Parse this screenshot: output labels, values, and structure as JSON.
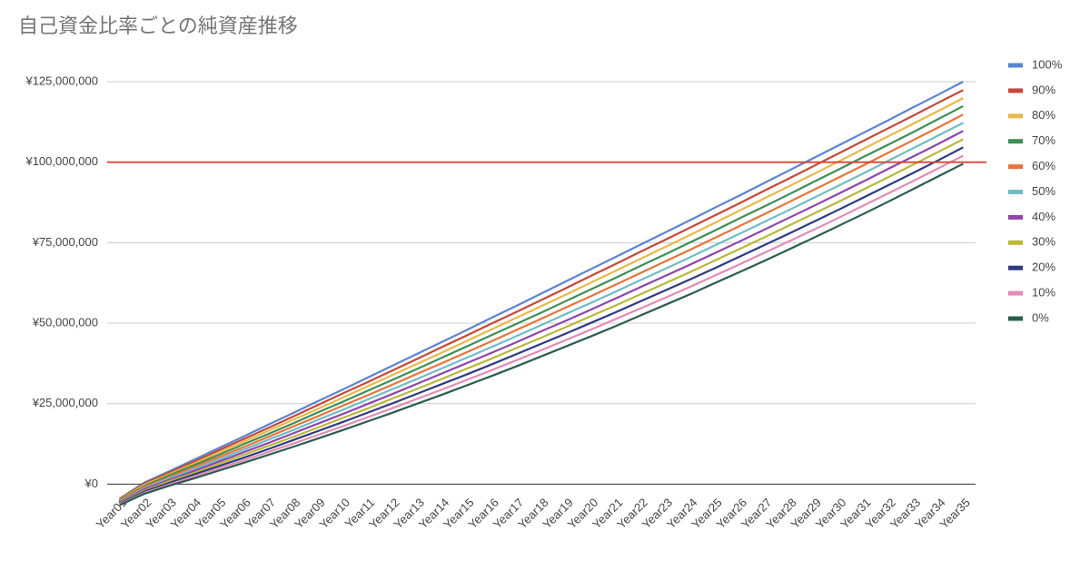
{
  "chart_data": {
    "type": "line",
    "title": "自己資金比率ごとの純資産推移",
    "categories": [
      "Year01",
      "Year02",
      "Year03",
      "Year04",
      "Year05",
      "Year06",
      "Year07",
      "Year08",
      "Year09",
      "Year10",
      "Year11",
      "Year12",
      "Year13",
      "Year14",
      "Year15",
      "Year16",
      "Year17",
      "Year18",
      "Year19",
      "Year20",
      "Year21",
      "Year22",
      "Year23",
      "Year24",
      "Year25",
      "Year26",
      "Year27",
      "Year28",
      "Year29",
      "Year30",
      "Year31",
      "Year32",
      "Year33",
      "Year34",
      "Year35"
    ],
    "series": [
      {
        "name": "100%",
        "color": "#5b84d1",
        "values": [
          -4500000,
          500000,
          4000000,
          7600000,
          11200000,
          14800000,
          18500000,
          22100000,
          25800000,
          29400000,
          33100000,
          36800000,
          40500000,
          44200000,
          47900000,
          51700000,
          55400000,
          59200000,
          63000000,
          66800000,
          70600000,
          74400000,
          78200000,
          82000000,
          85900000,
          89700000,
          93600000,
          97500000,
          101400000,
          105300000,
          109200000,
          113100000,
          117100000,
          121000000,
          125000000
        ]
      },
      {
        "name": "90%",
        "color": "#c4493b",
        "values": [
          -4700000,
          200000,
          3600000,
          7000000,
          10500000,
          14000000,
          17500000,
          21000000,
          24600000,
          28200000,
          31700000,
          35300000,
          38900000,
          42600000,
          46200000,
          49900000,
          53500000,
          57200000,
          60900000,
          64700000,
          68400000,
          72200000,
          75900000,
          79700000,
          83500000,
          87300000,
          91200000,
          95000000,
          98900000,
          102800000,
          106700000,
          110600000,
          114500000,
          118500000,
          122400000
        ]
      },
      {
        "name": "80%",
        "color": "#e8b949",
        "values": [
          -4900000,
          -200000,
          3100000,
          6400000,
          9800000,
          13200000,
          16600000,
          20000000,
          23400000,
          26900000,
          30400000,
          33900000,
          37400000,
          40900000,
          44500000,
          48100000,
          51700000,
          55300000,
          58900000,
          62600000,
          66300000,
          70000000,
          73700000,
          77400000,
          81200000,
          85000000,
          88800000,
          92600000,
          96400000,
          100300000,
          104200000,
          108100000,
          112000000,
          115900000,
          119900000
        ]
      },
      {
        "name": "70%",
        "color": "#3d8e57",
        "values": [
          -5100000,
          -600000,
          2700000,
          5900000,
          9100000,
          12400000,
          15600000,
          18900000,
          22300000,
          25600000,
          29000000,
          32400000,
          35800000,
          39300000,
          42800000,
          46300000,
          49800000,
          53300000,
          56900000,
          60500000,
          64100000,
          67800000,
          71400000,
          75100000,
          78800000,
          82600000,
          86300000,
          90100000,
          94000000,
          97800000,
          101700000,
          105500000,
          109400000,
          113400000,
          117400000
        ]
      },
      {
        "name": "60%",
        "color": "#e8743b",
        "values": [
          -5300000,
          -900000,
          2200000,
          5300000,
          8400000,
          11500000,
          14700000,
          17900000,
          21100000,
          24400000,
          27600000,
          30900000,
          34300000,
          37600000,
          41000000,
          44400000,
          47900000,
          51400000,
          54900000,
          58400000,
          62000000,
          65600000,
          69200000,
          72800000,
          76500000,
          80200000,
          83900000,
          87700000,
          91500000,
          95300000,
          99100000,
          103000000,
          106900000,
          110800000,
          114800000
        ]
      },
      {
        "name": "50%",
        "color": "#70bcc4",
        "values": [
          -5500000,
          -1300000,
          1800000,
          4700000,
          7700000,
          10700000,
          13800000,
          16800000,
          20000000,
          23100000,
          26300000,
          29500000,
          32700000,
          36000000,
          39300000,
          42600000,
          46000000,
          49400000,
          52900000,
          56300000,
          59800000,
          63400000,
          66900000,
          70500000,
          74200000,
          77800000,
          81500000,
          85200000,
          89000000,
          92800000,
          96600000,
          100500000,
          104400000,
          108300000,
          112200000
        ]
      },
      {
        "name": "40%",
        "color": "#8e44ad",
        "values": [
          -5700000,
          -1600000,
          1300000,
          4100000,
          7000000,
          9900000,
          12800000,
          15800000,
          18800000,
          21800000,
          24900000,
          28000000,
          31200000,
          34400000,
          37600000,
          40800000,
          44100000,
          47500000,
          50800000,
          54200000,
          57700000,
          61200000,
          64700000,
          68200000,
          71800000,
          75400000,
          79100000,
          82800000,
          86500000,
          90300000,
          94100000,
          98000000,
          101800000,
          105700000,
          109700000
        ]
      },
      {
        "name": "30%",
        "color": "#b8b83a",
        "values": [
          -5900000,
          -2000000,
          900000,
          3500000,
          6300000,
          9100000,
          11900000,
          14700000,
          17600000,
          20600000,
          23500000,
          26600000,
          29600000,
          32700000,
          35900000,
          39000000,
          42300000,
          45500000,
          48800000,
          52200000,
          55500000,
          59000000,
          62400000,
          65900000,
          69500000,
          73100000,
          76700000,
          80400000,
          84100000,
          87800000,
          91600000,
          95400000,
          99300000,
          103200000,
          107100000
        ]
      },
      {
        "name": "20%",
        "color": "#2e3a80",
        "values": [
          -6100000,
          -2300000,
          400000,
          3000000,
          5600000,
          8200000,
          10900000,
          13700000,
          16500000,
          19300000,
          22200000,
          25100000,
          28100000,
          31100000,
          34100000,
          37200000,
          40400000,
          43600000,
          46800000,
          50100000,
          53400000,
          56800000,
          60200000,
          63600000,
          67100000,
          70700000,
          74300000,
          77900000,
          81600000,
          85300000,
          89100000,
          92900000,
          96700000,
          100600000,
          104600000
        ]
      },
      {
        "name": "10%",
        "color": "#e48bb5",
        "values": [
          -6300000,
          -2700000,
          -100000,
          2400000,
          4900000,
          7400000,
          10000000,
          12600000,
          15300000,
          18000000,
          20800000,
          23600000,
          26500000,
          29400000,
          32400000,
          35400000,
          38500000,
          41600000,
          44800000,
          48000000,
          51300000,
          54600000,
          57900000,
          61300000,
          64800000,
          68300000,
          71900000,
          75500000,
          79100000,
          82800000,
          86600000,
          90400000,
          94200000,
          98100000,
          102000000
        ]
      },
      {
        "name": "0%",
        "color": "#2a5c4f",
        "values": [
          -6500000,
          -3000000,
          -500000,
          1800000,
          4200000,
          6600000,
          9100000,
          11600000,
          14200000,
          16800000,
          19500000,
          22200000,
          25000000,
          27800000,
          30700000,
          33600000,
          36600000,
          39700000,
          42800000,
          45900000,
          49100000,
          52400000,
          55700000,
          59000000,
          62500000,
          65900000,
          69400000,
          73000000,
          76600000,
          80300000,
          84000000,
          87800000,
          91700000,
          95600000,
          99500000
        ]
      }
    ],
    "ylim": [
      -7500000,
      125000000
    ],
    "yticks": [
      {
        "value": 0,
        "label": "¥0"
      },
      {
        "value": 25000000,
        "label": "¥25,000,000"
      },
      {
        "value": 50000000,
        "label": "¥50,000,000"
      },
      {
        "value": 75000000,
        "label": "¥75,000,000"
      },
      {
        "value": 100000000,
        "label": "¥100,000,000"
      },
      {
        "value": 125000000,
        "label": "¥125,000,000"
      }
    ],
    "grid": true,
    "reference_line": {
      "value": 100000000,
      "color": "#db4437"
    },
    "legend_position": "right"
  }
}
